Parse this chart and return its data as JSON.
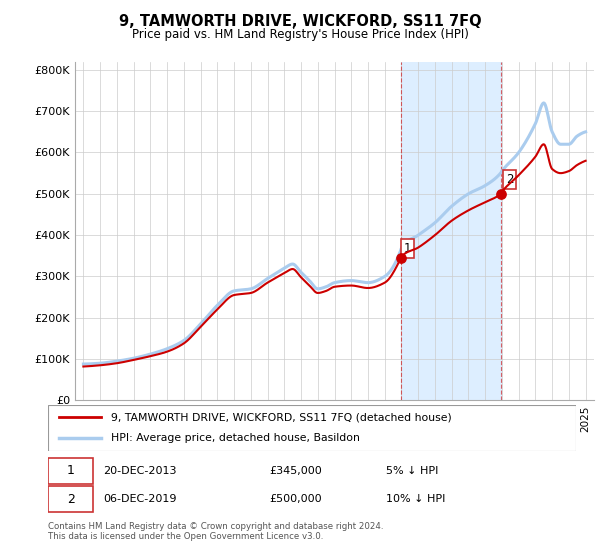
{
  "title": "9, TAMWORTH DRIVE, WICKFORD, SS11 7FQ",
  "subtitle": "Price paid vs. HM Land Registry's House Price Index (HPI)",
  "hpi_color": "#aaccee",
  "price_color": "#cc0000",
  "highlight_bg": "#ddeeff",
  "yticks": [
    0,
    100000,
    200000,
    300000,
    400000,
    500000,
    600000,
    700000,
    800000
  ],
  "ytick_labels": [
    "£0",
    "£100K",
    "£200K",
    "£300K",
    "£400K",
    "£500K",
    "£600K",
    "£700K",
    "£800K"
  ],
  "transaction1_year": 2013.97,
  "transaction1_price": 345000,
  "transaction2_year": 2019.92,
  "transaction2_price": 500000,
  "highlight_x_start": 2013.97,
  "highlight_x_end": 2019.92,
  "legend_entry1": "9, TAMWORTH DRIVE, WICKFORD, SS11 7FQ (detached house)",
  "legend_entry2": "HPI: Average price, detached house, Basildon",
  "annotation1_date": "20-DEC-2013",
  "annotation1_price": "£345,000",
  "annotation1_hpi": "5% ↓ HPI",
  "annotation2_date": "06-DEC-2019",
  "annotation2_price": "£500,000",
  "annotation2_hpi": "10% ↓ HPI",
  "footer": "Contains HM Land Registry data © Crown copyright and database right 2024.\nThis data is licensed under the Open Government Licence v3.0.",
  "xmin": 1994.5,
  "xmax": 2025.5,
  "ymin": 0,
  "ymax": 820000,
  "hpi_waypoints": [
    [
      1995.0,
      88000
    ],
    [
      1996.0,
      90000
    ],
    [
      1997.0,
      95000
    ],
    [
      1998.0,
      102000
    ],
    [
      1999.0,
      112000
    ],
    [
      2000.0,
      125000
    ],
    [
      2001.0,
      145000
    ],
    [
      2002.0,
      185000
    ],
    [
      2003.0,
      230000
    ],
    [
      2004.0,
      265000
    ],
    [
      2005.0,
      270000
    ],
    [
      2006.0,
      295000
    ],
    [
      2007.0,
      320000
    ],
    [
      2007.5,
      330000
    ],
    [
      2008.0,
      310000
    ],
    [
      2008.5,
      290000
    ],
    [
      2009.0,
      270000
    ],
    [
      2009.5,
      275000
    ],
    [
      2010.0,
      285000
    ],
    [
      2011.0,
      290000
    ],
    [
      2012.0,
      285000
    ],
    [
      2013.0,
      300000
    ],
    [
      2013.97,
      365000
    ],
    [
      2014.0,
      370000
    ],
    [
      2015.0,
      400000
    ],
    [
      2016.0,
      430000
    ],
    [
      2017.0,
      470000
    ],
    [
      2018.0,
      500000
    ],
    [
      2019.0,
      520000
    ],
    [
      2019.92,
      550000
    ],
    [
      2020.0,
      555000
    ],
    [
      2021.0,
      600000
    ],
    [
      2022.0,
      670000
    ],
    [
      2022.5,
      720000
    ],
    [
      2023.0,
      650000
    ],
    [
      2023.5,
      620000
    ],
    [
      2024.0,
      620000
    ],
    [
      2024.5,
      640000
    ],
    [
      2025.0,
      650000
    ]
  ],
  "price_waypoints": [
    [
      1995.0,
      82000
    ],
    [
      1996.0,
      85000
    ],
    [
      1997.0,
      90000
    ],
    [
      1998.0,
      98000
    ],
    [
      1999.0,
      107000
    ],
    [
      2000.0,
      118000
    ],
    [
      2001.0,
      138000
    ],
    [
      2002.0,
      178000
    ],
    [
      2003.0,
      220000
    ],
    [
      2004.0,
      255000
    ],
    [
      2005.0,
      260000
    ],
    [
      2006.0,
      285000
    ],
    [
      2007.0,
      308000
    ],
    [
      2007.5,
      318000
    ],
    [
      2008.0,
      298000
    ],
    [
      2008.5,
      278000
    ],
    [
      2009.0,
      260000
    ],
    [
      2009.5,
      265000
    ],
    [
      2010.0,
      275000
    ],
    [
      2011.0,
      278000
    ],
    [
      2012.0,
      272000
    ],
    [
      2013.0,
      285000
    ],
    [
      2013.97,
      345000
    ],
    [
      2014.0,
      348000
    ],
    [
      2015.0,
      370000
    ],
    [
      2016.0,
      400000
    ],
    [
      2017.0,
      435000
    ],
    [
      2018.0,
      460000
    ],
    [
      2019.0,
      480000
    ],
    [
      2019.92,
      500000
    ],
    [
      2020.0,
      505000
    ],
    [
      2021.0,
      545000
    ],
    [
      2022.0,
      590000
    ],
    [
      2022.5,
      620000
    ],
    [
      2023.0,
      560000
    ],
    [
      2023.5,
      550000
    ],
    [
      2024.0,
      555000
    ],
    [
      2024.5,
      570000
    ],
    [
      2025.0,
      580000
    ]
  ]
}
